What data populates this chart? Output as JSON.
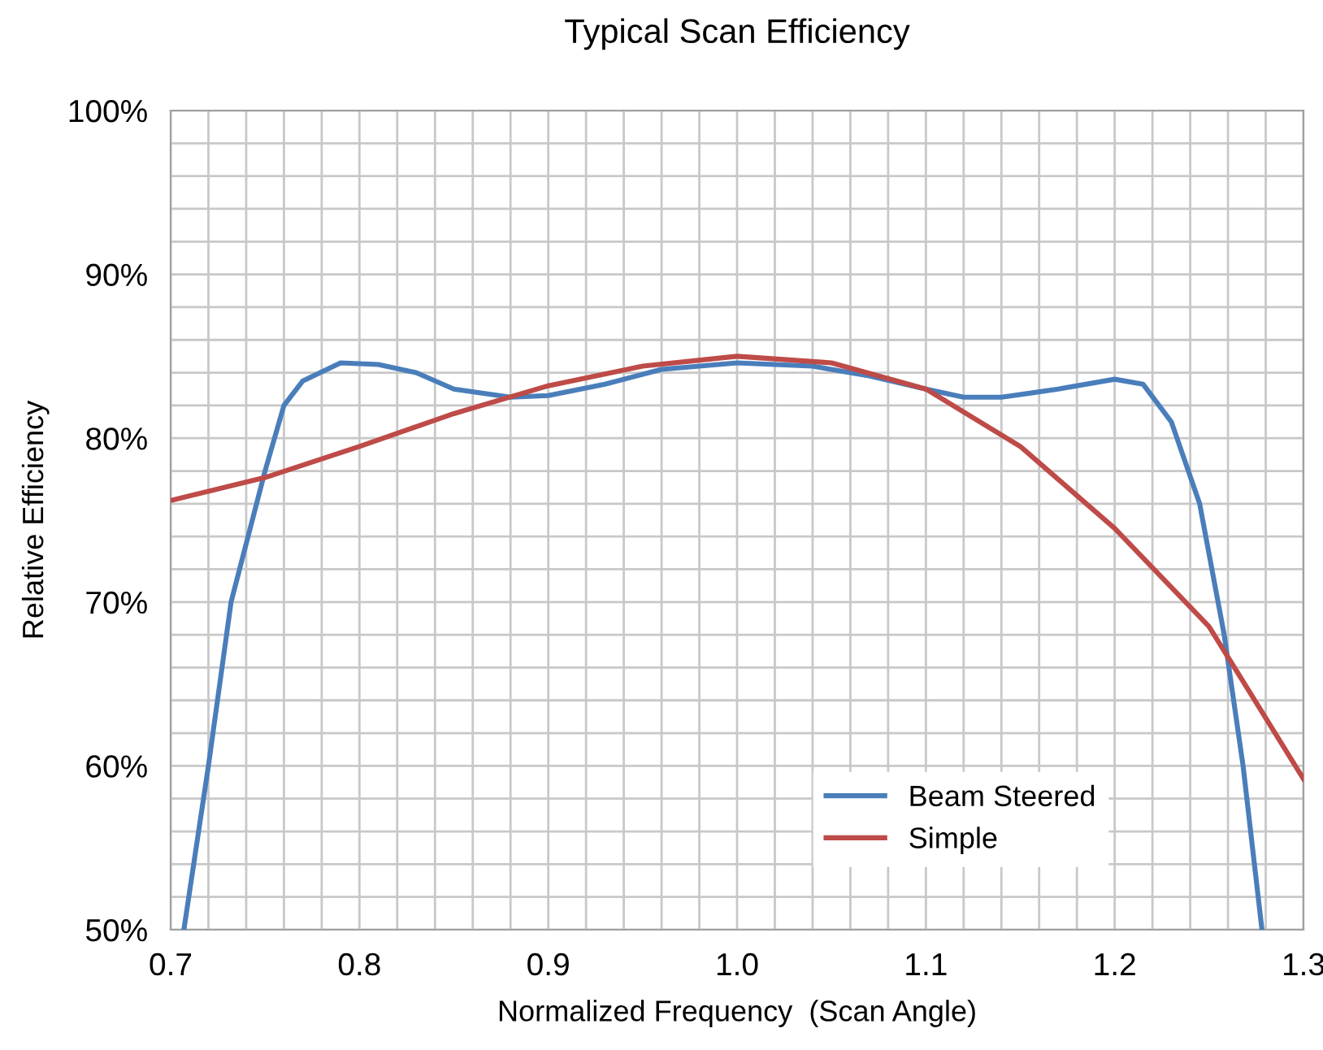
{
  "chart_data": {
    "type": "line",
    "title": "Typical Scan Efficiency",
    "xlabel": "Normalized Frequency  (Scan Angle)",
    "ylabel": "Relative Efficiency",
    "series": [
      {
        "name": "Beam Steered",
        "color": "#4a7ebb",
        "x": [
          0.707,
          0.72,
          0.732,
          0.75,
          0.76,
          0.77,
          0.79,
          0.81,
          0.83,
          0.85,
          0.88,
          0.9,
          0.93,
          0.96,
          1.0,
          1.04,
          1.07,
          1.1,
          1.12,
          1.14,
          1.17,
          1.2,
          1.215,
          1.23,
          1.245,
          1.258,
          1.268,
          1.278
        ],
        "values": [
          50,
          60,
          70,
          78,
          82,
          83.5,
          84.6,
          84.5,
          84,
          83,
          82.5,
          82.6,
          83.3,
          84.2,
          84.6,
          84.4,
          83.8,
          83,
          82.5,
          82.5,
          83,
          83.6,
          83.3,
          81,
          76,
          68,
          60,
          50
        ]
      },
      {
        "name": "Simple",
        "color": "#be4b48",
        "x": [
          0.7,
          0.75,
          0.8,
          0.85,
          0.9,
          0.95,
          1.0,
          1.05,
          1.1,
          1.15,
          1.2,
          1.25,
          1.3
        ],
        "values": [
          76.2,
          77.6,
          79.5,
          81.5,
          83.2,
          84.4,
          85.0,
          84.6,
          83.0,
          79.5,
          74.5,
          68.5,
          59.2
        ]
      }
    ],
    "xlim": [
      0.7,
      1.3
    ],
    "xticks": [
      {
        "value": 0.7,
        "label": "0.7"
      },
      {
        "value": 0.72,
        "label": null
      },
      {
        "value": 0.74,
        "label": null
      },
      {
        "value": 0.76,
        "label": null
      },
      {
        "value": 0.78,
        "label": null
      },
      {
        "value": 0.8,
        "label": "0.8"
      },
      {
        "value": 0.82,
        "label": null
      },
      {
        "value": 0.84,
        "label": null
      },
      {
        "value": 0.86,
        "label": null
      },
      {
        "value": 0.88,
        "label": null
      },
      {
        "value": 0.9,
        "label": "0.9"
      },
      {
        "value": 0.92,
        "label": null
      },
      {
        "value": 0.94,
        "label": null
      },
      {
        "value": 0.96,
        "label": null
      },
      {
        "value": 0.98,
        "label": null
      },
      {
        "value": 1.0,
        "label": "1.0"
      },
      {
        "value": 1.02,
        "label": null
      },
      {
        "value": 1.04,
        "label": null
      },
      {
        "value": 1.06,
        "label": null
      },
      {
        "value": 1.08,
        "label": null
      },
      {
        "value": 1.1,
        "label": "1.1"
      },
      {
        "value": 1.12,
        "label": null
      },
      {
        "value": 1.14,
        "label": null
      },
      {
        "value": 1.16,
        "label": null
      },
      {
        "value": 1.18,
        "label": null
      },
      {
        "value": 1.2,
        "label": "1.2"
      },
      {
        "value": 1.22,
        "label": null
      },
      {
        "value": 1.24,
        "label": null
      },
      {
        "value": 1.26,
        "label": null
      },
      {
        "value": 1.28,
        "label": null
      },
      {
        "value": 1.3,
        "label": "1.3"
      }
    ],
    "ylim": [
      50,
      100
    ],
    "yticks": [
      {
        "value": 50,
        "label": "50%"
      },
      {
        "value": 52,
        "label": null
      },
      {
        "value": 54,
        "label": null
      },
      {
        "value": 56,
        "label": null
      },
      {
        "value": 58,
        "label": null
      },
      {
        "value": 60,
        "label": "60%"
      },
      {
        "value": 62,
        "label": null
      },
      {
        "value": 64,
        "label": null
      },
      {
        "value": 66,
        "label": null
      },
      {
        "value": 68,
        "label": null
      },
      {
        "value": 70,
        "label": "70%"
      },
      {
        "value": 72,
        "label": null
      },
      {
        "value": 74,
        "label": null
      },
      {
        "value": 76,
        "label": null
      },
      {
        "value": 78,
        "label": null
      },
      {
        "value": 80,
        "label": "80%"
      },
      {
        "value": 82,
        "label": null
      },
      {
        "value": 84,
        "label": null
      },
      {
        "value": 86,
        "label": null
      },
      {
        "value": 88,
        "label": null
      },
      {
        "value": 90,
        "label": "90%"
      },
      {
        "value": 92,
        "label": null
      },
      {
        "value": 94,
        "label": null
      },
      {
        "value": 96,
        "label": null
      },
      {
        "value": 98,
        "label": null
      },
      {
        "value": 100,
        "label": "100%"
      }
    ],
    "grid": true,
    "legend": "bottom right",
    "marker": "none",
    "line_style": "solid"
  }
}
